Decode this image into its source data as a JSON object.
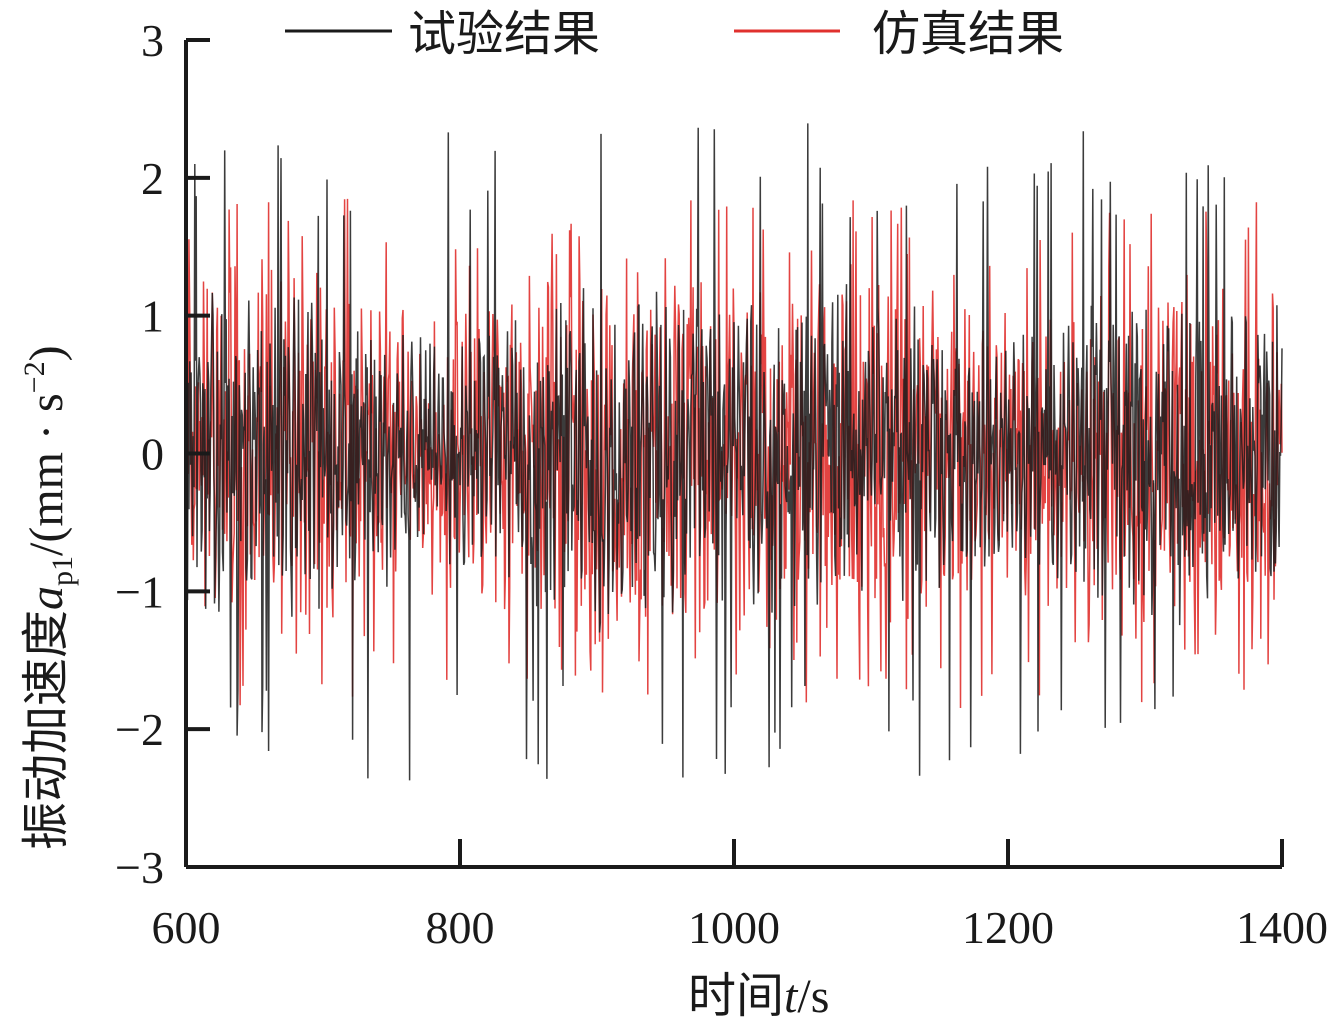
{
  "chart_data": {
    "type": "line",
    "title": "",
    "xlim": [
      600,
      1400
    ],
    "ylim": [
      -3,
      3
    ],
    "xticks": [
      "600",
      "800",
      "1000",
      "1200",
      "1400"
    ],
    "yticks": [
      "3",
      "2",
      "1",
      "0",
      "−1",
      "−2",
      "−3"
    ],
    "xtick_values": [
      600,
      800,
      1000,
      1200,
      1400
    ],
    "ytick_values": [
      3,
      2,
      1,
      0,
      -1,
      -2,
      -3
    ],
    "xlabel": {
      "prefix": "时间",
      "var": "t",
      "unit": "/s"
    },
    "ylabel": {
      "prefix": "振动加速度",
      "var": "a",
      "sub": "p1",
      "unit_open": "/(mm · s",
      "sup": "−2",
      "unit_close": ")"
    },
    "legend_position": "top",
    "series": [
      {
        "name": "试验结果",
        "color": "#1a1a1a",
        "approx_amplitude": 1.2,
        "peak_range": [
          -2.9,
          2.75
        ]
      },
      {
        "name": "仿真结果",
        "color": "#e0302e",
        "approx_amplitude": 1.3,
        "peak_range": [
          -2.0,
          1.9
        ]
      }
    ]
  }
}
